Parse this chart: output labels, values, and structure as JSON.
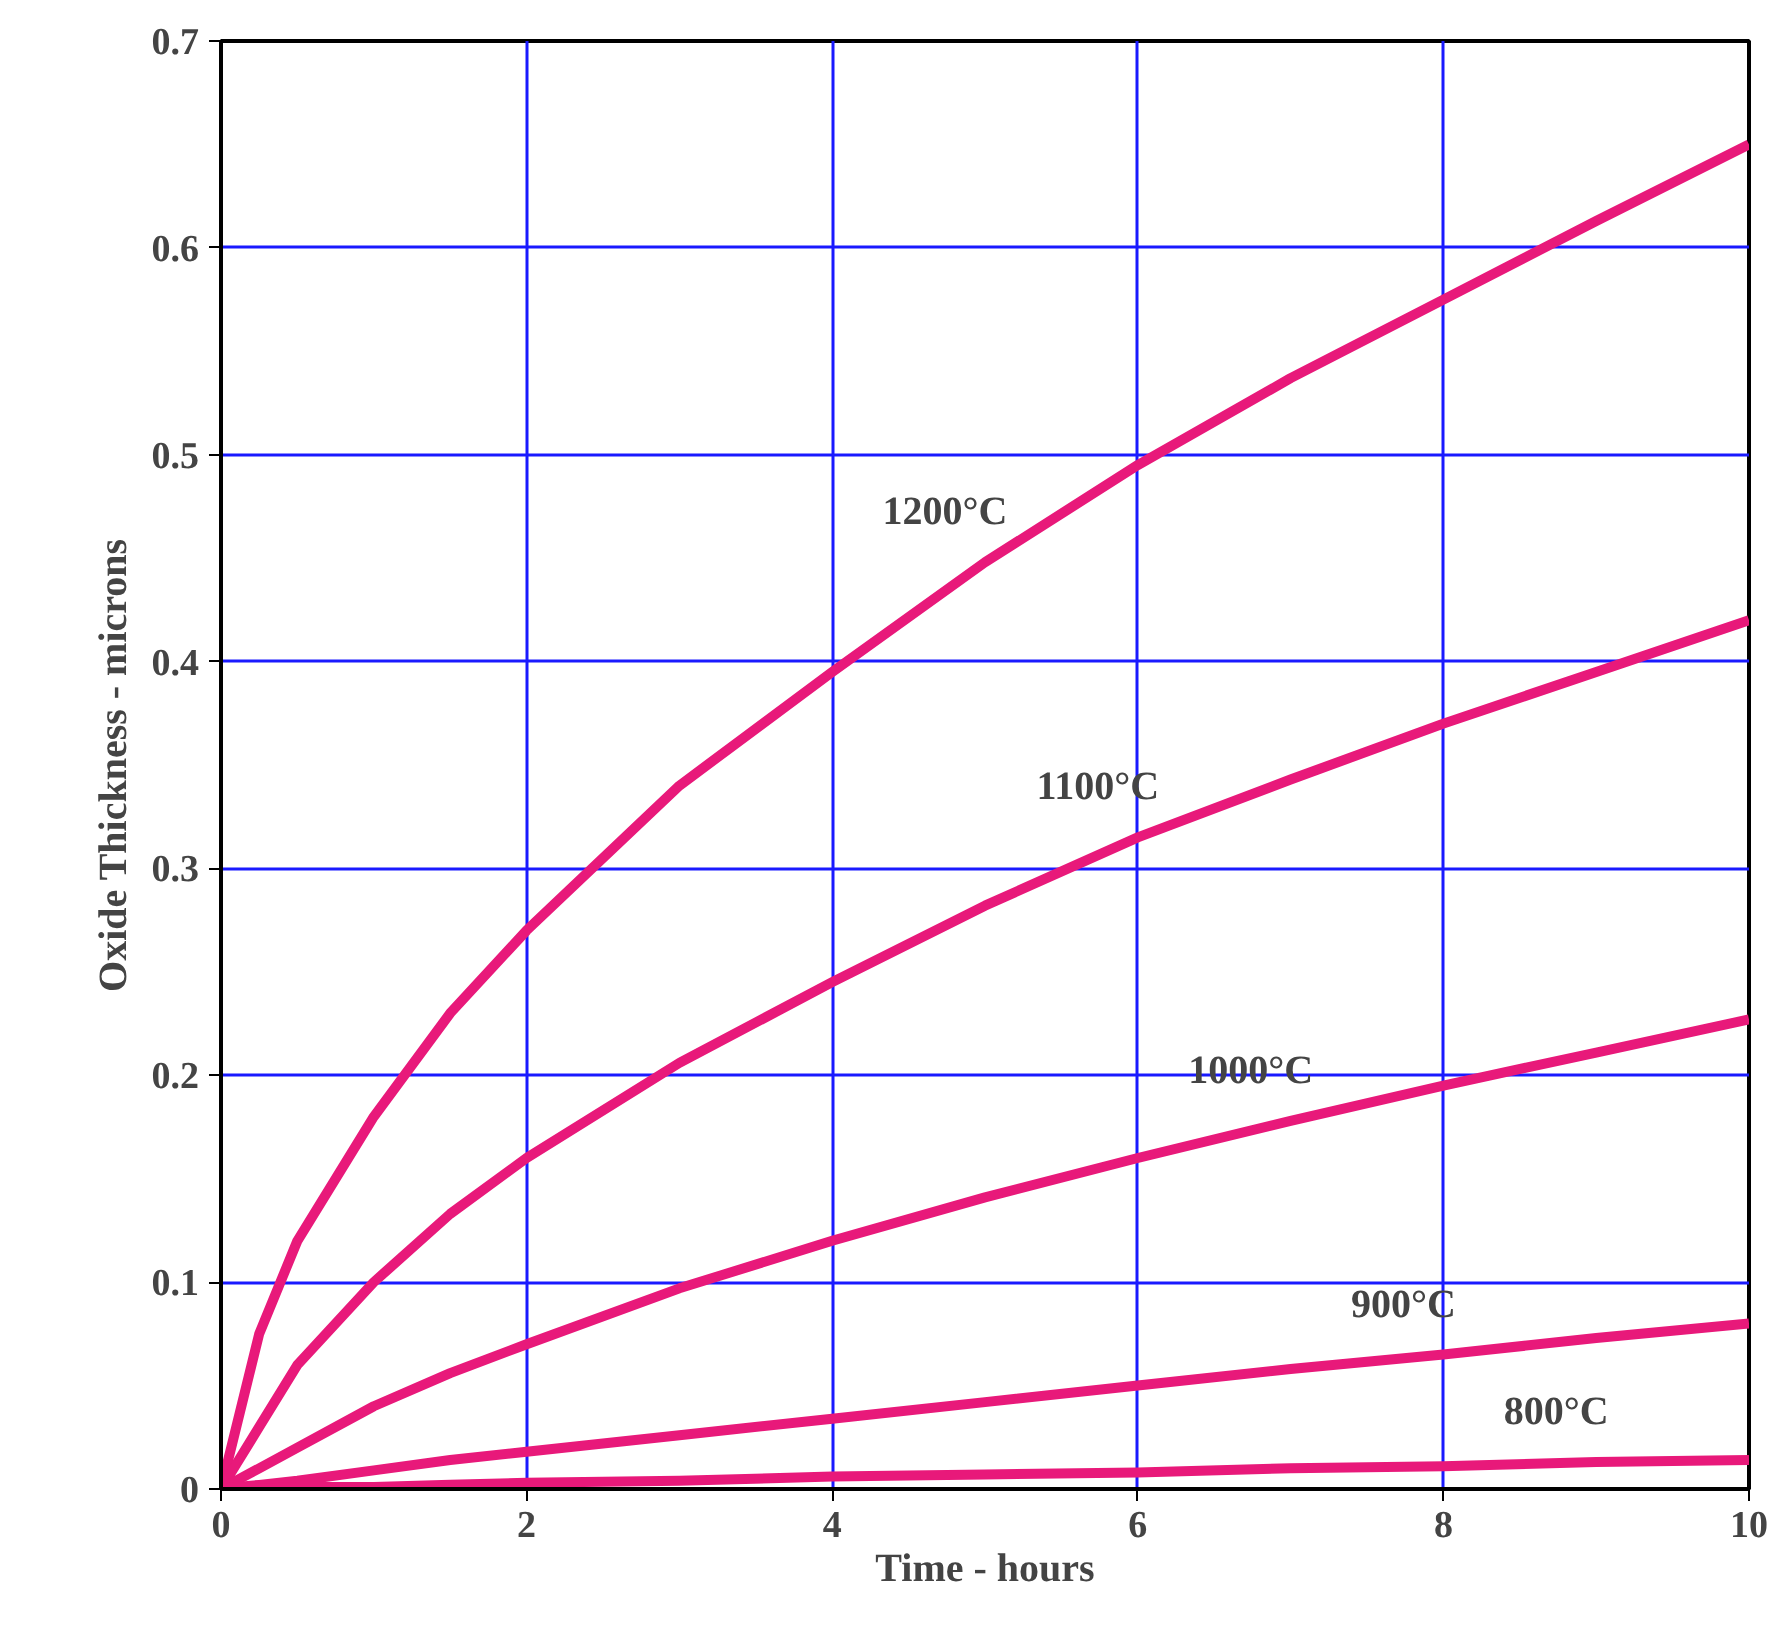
{
  "chart_data": {
    "type": "line",
    "xlabel": "Time - hours",
    "ylabel": "Oxide Thickness - microns",
    "xlim": [
      0,
      10
    ],
    "ylim": [
      0,
      0.7
    ],
    "xticks": [
      0,
      2,
      4,
      6,
      8,
      10
    ],
    "yticks": [
      0,
      0.1,
      0.2,
      0.3,
      0.4,
      0.5,
      0.6,
      0.7
    ],
    "grid": true,
    "marker": "none",
    "line_style": "solid",
    "x": [
      0,
      0.1,
      0.25,
      0.5,
      1,
      1.5,
      2,
      3,
      4,
      5,
      6,
      7,
      8,
      9,
      10
    ],
    "series": [
      {
        "name": "1200°C",
        "color": "#e8197a",
        "values": [
          0,
          0.03,
          0.075,
          0.12,
          0.18,
          0.23,
          0.27,
          0.34,
          0.395,
          0.448,
          0.495,
          0.537,
          0.575,
          0.613,
          0.65
        ]
      },
      {
        "name": "1100°C",
        "color": "#e8197a",
        "values": [
          0,
          0.012,
          0.03,
          0.06,
          0.1,
          0.133,
          0.16,
          0.206,
          0.245,
          0.282,
          0.315,
          0.343,
          0.37,
          0.395,
          0.42
        ]
      },
      {
        "name": "1000°C",
        "color": "#e8197a",
        "values": [
          0,
          0.004,
          0.01,
          0.02,
          0.04,
          0.056,
          0.07,
          0.097,
          0.12,
          0.141,
          0.16,
          0.178,
          0.195,
          0.211,
          0.227
        ]
      },
      {
        "name": "900°C",
        "color": "#e8197a",
        "values": [
          0,
          0.001,
          0.002,
          0.004,
          0.009,
          0.014,
          0.018,
          0.026,
          0.034,
          0.042,
          0.05,
          0.058,
          0.065,
          0.073,
          0.08
        ]
      },
      {
        "name": "800°C",
        "color": "#e8197a",
        "values": [
          0,
          0.0,
          0.0,
          0.001,
          0.001,
          0.002,
          0.003,
          0.004,
          0.006,
          0.007,
          0.008,
          0.01,
          0.011,
          0.013,
          0.014
        ]
      }
    ]
  }
}
